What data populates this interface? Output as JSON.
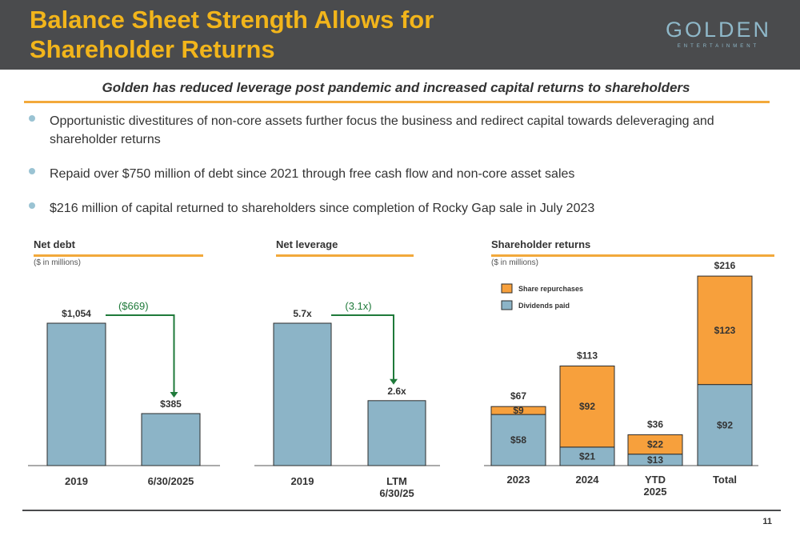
{
  "header": {
    "title_line1": "Balance Sheet Strength Allows for",
    "title_line2": "Shareholder Returns",
    "logo_main": "GOLDEN",
    "logo_sub": "ENTERTAINMENT"
  },
  "tagline": "Golden has reduced leverage post pandemic and increased capital returns to shareholders",
  "bullets": [
    "Opportunistic divestitures of non-core assets further focus the business and redirect capital towards deleveraging and shareholder returns",
    "Repaid over $750 million of debt since 2021 through free cash flow and non-core asset sales",
    "$216 million of capital returned to shareholders since completion of Rocky Gap sale in July 2023"
  ],
  "page_number": "11",
  "colors": {
    "bar_blue": "#8cb4c7",
    "bar_orange": "#f7a03c",
    "arrow_green": "#1f7a3a",
    "accent_gold": "#f2a93b"
  },
  "chart_data": [
    {
      "type": "bar",
      "title": "Net debt",
      "subtitle": "($ in millions)",
      "categories": [
        "2019",
        "6/30/2025"
      ],
      "values": [
        1054,
        385
      ],
      "value_labels": [
        "$1,054",
        "$385"
      ],
      "annotation": "($669)",
      "ylim": [
        0,
        1054
      ]
    },
    {
      "type": "bar",
      "title": "Net leverage",
      "subtitle": "",
      "categories": [
        "2019",
        "LTM 6/30/25"
      ],
      "category_lines": [
        [
          "2019"
        ],
        [
          "LTM",
          "6/30/25"
        ]
      ],
      "values": [
        5.7,
        2.6
      ],
      "value_labels": [
        "5.7x",
        "2.6x"
      ],
      "annotation": "(3.1x)",
      "ylim": [
        0,
        5.7
      ]
    },
    {
      "type": "bar",
      "stacked": true,
      "title": "Shareholder returns",
      "subtitle": "($ in millions)",
      "categories": [
        "2023",
        "2024",
        "YTD 2025",
        "Total"
      ],
      "category_lines": [
        [
          "2023"
        ],
        [
          "2024"
        ],
        [
          "YTD",
          "2025"
        ],
        [
          "Total"
        ]
      ],
      "series": [
        {
          "name": "Dividends paid",
          "values": [
            58,
            21,
            13,
            92
          ],
          "labels": [
            "$58",
            "$21",
            "$13",
            "$92"
          ]
        },
        {
          "name": "Share repurchases",
          "values": [
            9,
            92,
            22,
            123
          ],
          "labels": [
            "$9",
            "$92",
            "$22",
            "$123"
          ]
        }
      ],
      "totals": [
        "$67",
        "$113",
        "$36",
        "$216"
      ],
      "total_values": [
        67,
        113,
        36,
        216
      ],
      "legend": "top-left",
      "ylim": [
        0,
        216
      ]
    }
  ]
}
